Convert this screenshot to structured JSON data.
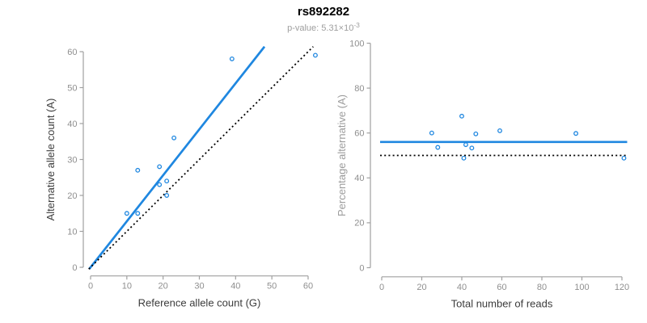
{
  "header": {
    "title": "rs892282",
    "p_value_prefix": "p-value: 5.31×10",
    "p_value_exponent": "-3"
  },
  "colors": {
    "accent_blue": "#1f87e0",
    "dotted_black": "#000000",
    "axis_gray": "#a0a0a0",
    "tick_label_gray": "#8f8f8f",
    "axis_title_dark": "#3c3c3c",
    "axis_title_gray": "#9c9c9c",
    "title_black": "#000000",
    "subtitle_gray": "#9e9e9e"
  },
  "chart_data": [
    {
      "type": "scatter",
      "title": "",
      "xlabel": "Reference allele count (G)",
      "ylabel": "Alternative allele count (A)",
      "xlim": [
        0,
        62
      ],
      "ylim": [
        0,
        60
      ],
      "xticks": [
        0,
        10,
        20,
        30,
        40,
        50,
        60
      ],
      "yticks": [
        0,
        10,
        20,
        30,
        40,
        50,
        60
      ],
      "grid": false,
      "legend": "none",
      "points": [
        [
          10,
          15
        ],
        [
          13,
          15
        ],
        [
          13,
          27
        ],
        [
          19,
          23
        ],
        [
          19,
          28
        ],
        [
          21,
          20
        ],
        [
          21,
          24
        ],
        [
          23,
          36
        ],
        [
          39,
          58
        ],
        [
          62,
          59
        ]
      ],
      "lines": [
        {
          "label": "fitted-ratio",
          "slope": 1.28,
          "intercept": 0,
          "style": "solid-blue"
        },
        {
          "label": "identity",
          "slope": 1,
          "intercept": 0,
          "style": "dotted-black"
        }
      ]
    },
    {
      "type": "scatter",
      "title": "",
      "xlabel": "Total number of reads",
      "ylabel": "Percentage alternative (A)",
      "xlim": [
        0,
        121
      ],
      "ylim": [
        0,
        100
      ],
      "xticks": [
        0,
        20,
        40,
        60,
        80,
        100,
        120
      ],
      "yticks": [
        0,
        20,
        40,
        60,
        80,
        100
      ],
      "grid": false,
      "legend": "none",
      "points": [
        [
          25,
          60
        ],
        [
          28,
          53.6
        ],
        [
          40,
          67.5
        ],
        [
          41,
          48.8
        ],
        [
          42,
          54.8
        ],
        [
          45,
          53.3
        ],
        [
          47,
          59.6
        ],
        [
          59,
          61
        ],
        [
          97,
          59.8
        ],
        [
          121,
          48.8
        ]
      ],
      "lines": [
        {
          "label": "mean-percentage",
          "y": 56,
          "style": "solid-blue"
        },
        {
          "label": "null-50-percent",
          "y": 50,
          "style": "dotted-black"
        }
      ]
    }
  ]
}
